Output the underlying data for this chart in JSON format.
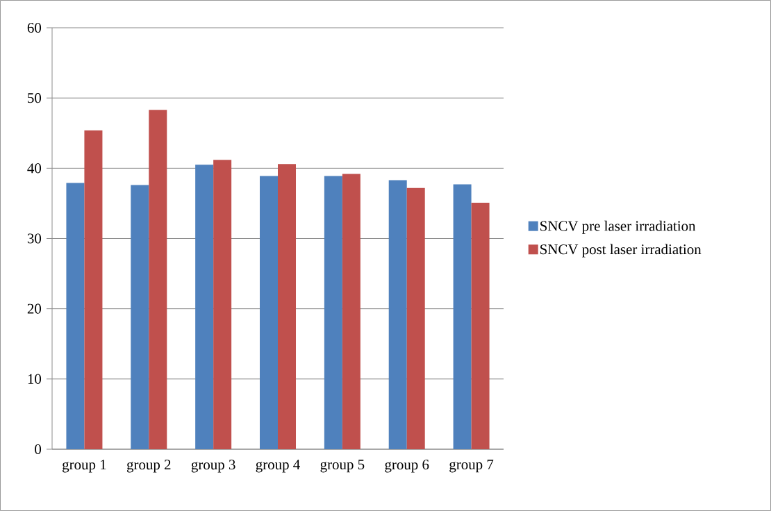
{
  "chart_data": {
    "type": "bar",
    "categories": [
      "group 1",
      "group 2",
      "group 3",
      "group 4",
      "group 5",
      "group 6",
      "group 7"
    ],
    "series": [
      {
        "name": "SNCV pre laser irradiation",
        "color": "#4f81bd",
        "values": [
          37.9,
          37.6,
          40.5,
          38.9,
          38.9,
          38.3,
          37.7
        ]
      },
      {
        "name": "SNCV post laser irradiation",
        "color": "#c0504d",
        "values": [
          45.4,
          48.3,
          41.2,
          40.6,
          39.2,
          37.2,
          35.1
        ]
      }
    ],
    "ylim": [
      0,
      60
    ],
    "yticks": [
      0,
      10,
      20,
      30,
      40,
      50,
      60
    ],
    "grid": "y",
    "legend": "right"
  }
}
